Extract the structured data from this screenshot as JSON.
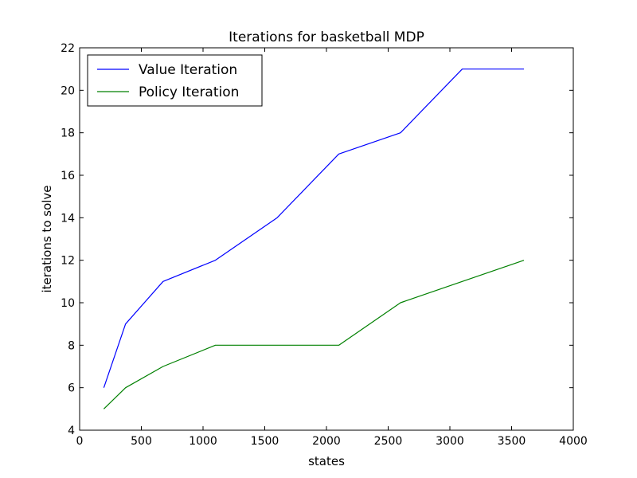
{
  "chart_data": {
    "type": "line",
    "title": "Iterations for basketball MDP",
    "xlabel": "states",
    "ylabel": "iterations to solve",
    "xlim": [
      0,
      4000
    ],
    "ylim": [
      4,
      22
    ],
    "xticks": [
      0,
      500,
      1000,
      1500,
      2000,
      2500,
      3000,
      3500,
      4000
    ],
    "yticks": [
      4,
      6,
      8,
      10,
      12,
      14,
      16,
      18,
      20,
      22
    ],
    "grid": false,
    "legend_position": "top-left",
    "series": [
      {
        "name": "Value Iteration",
        "color": "#0000ff",
        "x": [
          196,
          372,
          676,
          1100,
          1600,
          2100,
          2600,
          3100,
          3600
        ],
        "y": [
          6,
          9,
          11,
          12,
          14,
          17,
          18,
          21,
          21
        ]
      },
      {
        "name": "Policy Iteration",
        "color": "#008000",
        "x": [
          196,
          372,
          676,
          1100,
          1600,
          2100,
          2600,
          3100,
          3600
        ],
        "y": [
          5,
          6,
          7,
          8,
          8,
          8,
          10,
          11,
          12
        ]
      }
    ]
  }
}
